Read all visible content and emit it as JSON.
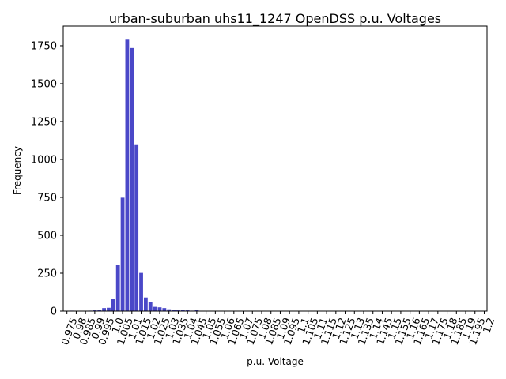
{
  "chart_data": {
    "type": "bar",
    "title": "urban-suburban uhs11_1247  OpenDSS p.u. Voltages",
    "xlabel": "p.u. Voltage",
    "ylabel": "Frequency",
    "ylim": [
      0,
      1880
    ],
    "xlim": [
      0.973,
      1.2015
    ],
    "y_ticks": [
      0,
      250,
      500,
      750,
      1000,
      1250,
      1500,
      1750
    ],
    "x_tick_values": [
      0.975,
      0.98,
      0.985,
      0.99,
      0.995,
      1.0,
      1.005,
      1.01,
      1.015,
      1.02,
      1.025,
      1.03,
      1.035,
      1.04,
      1.045,
      1.05,
      1.055,
      1.06,
      1.065,
      1.07,
      1.075,
      1.08,
      1.085,
      1.09,
      1.095,
      1.1,
      1.105,
      1.11,
      1.115,
      1.12,
      1.125,
      1.13,
      1.135,
      1.14,
      1.145,
      1.15,
      1.155,
      1.16,
      1.165,
      1.17,
      1.175,
      1.18,
      1.185,
      1.19,
      1.195,
      1.2
    ],
    "x_tick_labels": [
      "0.975",
      "0.98",
      "0.985",
      "0.99",
      "0.995",
      "1.0",
      "1.005",
      "1.01",
      "1.015",
      "1.02",
      "1.025",
      "1.03",
      "1.035",
      "1.04",
      "1.045",
      "1.05",
      "1.055",
      "1.06",
      "1.065",
      "1.07",
      "1.075",
      "1.08",
      "1.085",
      "1.09",
      "1.095",
      "1.1",
      "1.105",
      "1.11",
      "1.115",
      "1.12",
      "1.125",
      "1.13",
      "1.135",
      "1.14",
      "1.145",
      "1.15",
      "1.155",
      "1.16",
      "1.165",
      "1.17",
      "1.175",
      "1.18",
      "1.185",
      "1.19",
      "1.195",
      "1.2"
    ],
    "bin_width": 0.0025,
    "bins": [
      {
        "x": 0.9775,
        "value": 3
      },
      {
        "x": 0.98,
        "value": 1
      },
      {
        "x": 0.9825,
        "value": 1
      },
      {
        "x": 0.985,
        "value": 1
      },
      {
        "x": 0.9875,
        "value": 3
      },
      {
        "x": 0.99,
        "value": 5
      },
      {
        "x": 0.9925,
        "value": 8
      },
      {
        "x": 0.995,
        "value": 20
      },
      {
        "x": 0.9975,
        "value": 22
      },
      {
        "x": 1.0,
        "value": 78
      },
      {
        "x": 1.0025,
        "value": 305
      },
      {
        "x": 1.005,
        "value": 748
      },
      {
        "x": 1.0075,
        "value": 1790
      },
      {
        "x": 1.01,
        "value": 1735
      },
      {
        "x": 1.0125,
        "value": 1095
      },
      {
        "x": 1.015,
        "value": 252
      },
      {
        "x": 1.0175,
        "value": 90
      },
      {
        "x": 1.02,
        "value": 58
      },
      {
        "x": 1.0225,
        "value": 28
      },
      {
        "x": 1.025,
        "value": 25
      },
      {
        "x": 1.0275,
        "value": 20
      },
      {
        "x": 1.03,
        "value": 12
      },
      {
        "x": 1.0325,
        "value": 7
      },
      {
        "x": 1.035,
        "value": 5
      },
      {
        "x": 1.0375,
        "value": 10
      },
      {
        "x": 1.04,
        "value": 5
      },
      {
        "x": 1.0425,
        "value": 3
      },
      {
        "x": 1.045,
        "value": 10
      },
      {
        "x": 1.0475,
        "value": 2
      },
      {
        "x": 1.05,
        "value": 1
      }
    ],
    "bar_color": "#4a48c8",
    "grid": false,
    "legend": "none"
  }
}
